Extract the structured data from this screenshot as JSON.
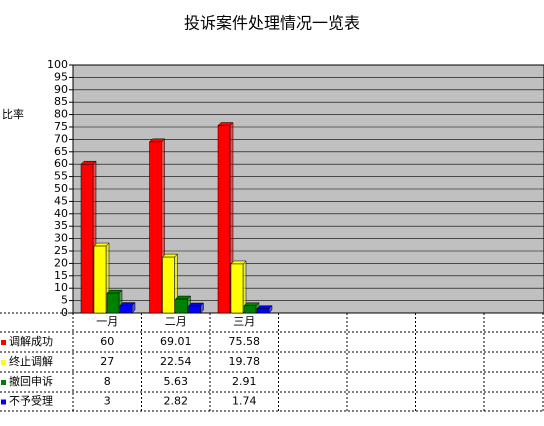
{
  "chart_data": {
    "type": "bar",
    "title": "投诉案件处理情况一览表",
    "y_label": "比率",
    "categories": [
      "一月",
      "二月",
      "三月"
    ],
    "series": [
      {
        "name": "调解成功",
        "color": "#ff0000",
        "values": [
          60,
          69.01,
          75.58
        ]
      },
      {
        "name": "终止调解",
        "color": "#ffff00",
        "values": [
          27,
          22.54,
          19.78
        ]
      },
      {
        "name": "撤回申诉",
        "color": "#008000",
        "values": [
          8,
          5.63,
          2.91
        ]
      },
      {
        "name": "不予受理",
        "color": "#0000ff",
        "values": [
          3,
          2.82,
          1.74
        ]
      }
    ],
    "ylim": [
      0,
      100
    ],
    "yticks": [
      0,
      5,
      10,
      15,
      20,
      25,
      30,
      35,
      40,
      45,
      50,
      55,
      60,
      65,
      70,
      75,
      80,
      85,
      90,
      95,
      100
    ],
    "grid": true
  }
}
